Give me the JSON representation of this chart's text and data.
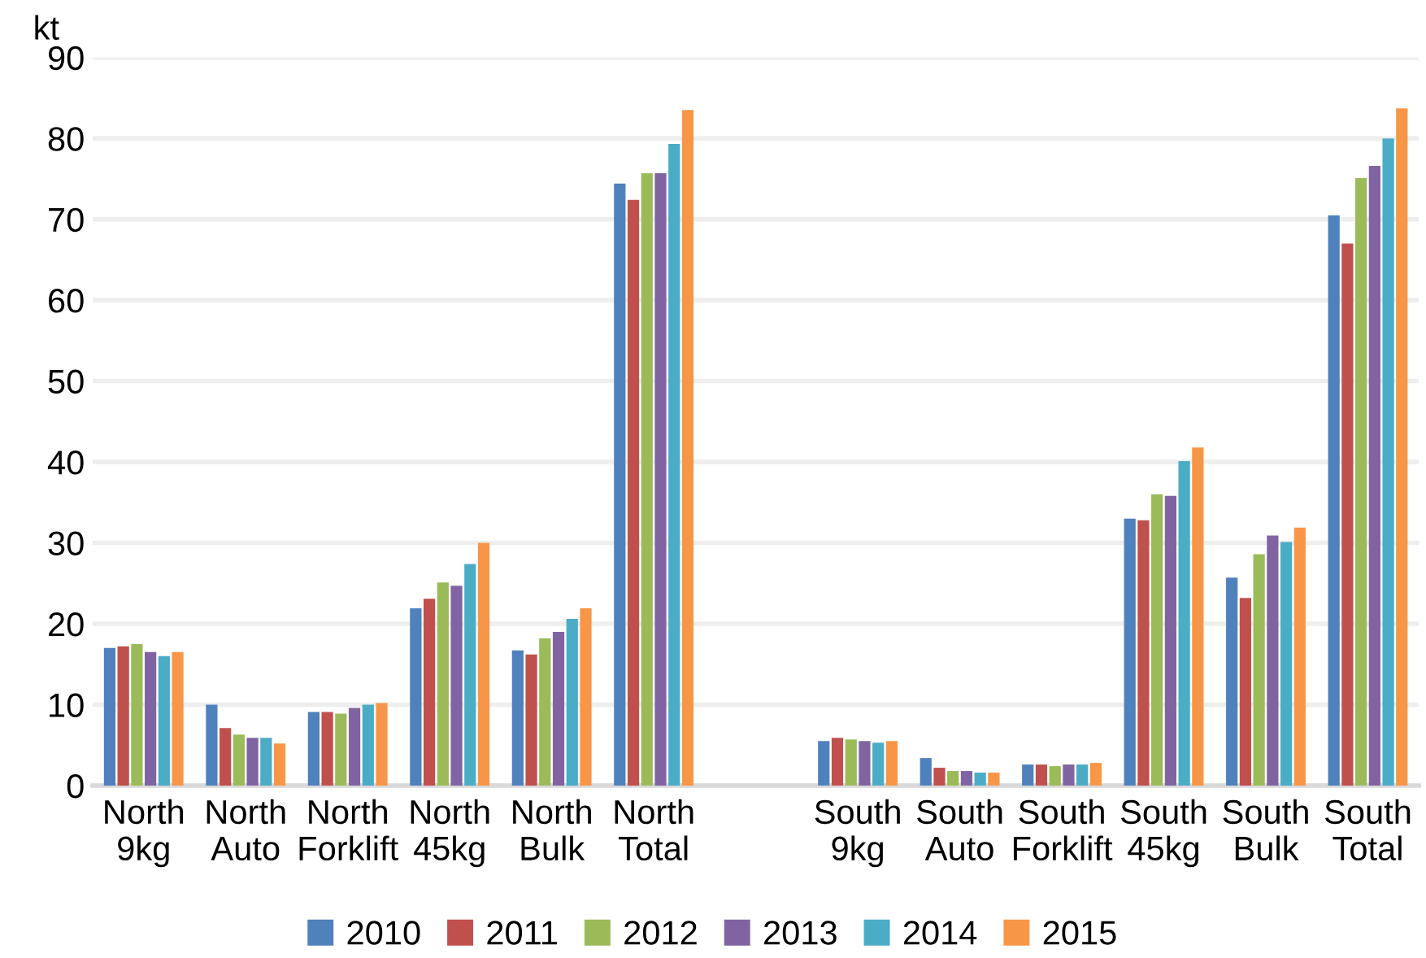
{
  "chart_data": {
    "type": "bar",
    "ylabel": "kt",
    "categories": [
      "North\n9kg",
      "North\nAuto",
      "North\nForklift",
      "North\n45kg",
      "North\nBulk",
      "North\nTotal",
      null,
      "South\n9kg",
      "South\nAuto",
      "South\nForklift",
      "South\n45kg",
      "South\nBulk",
      "South\nTotal"
    ],
    "series": [
      {
        "name": "2010",
        "color": "#4f81bd",
        "values": [
          17.0,
          10.0,
          9.1,
          21.9,
          16.7,
          74.4,
          null,
          5.5,
          3.4,
          2.6,
          33.0,
          25.7,
          70.5
        ]
      },
      {
        "name": "2011",
        "color": "#c0504d",
        "values": [
          17.2,
          7.1,
          9.1,
          23.1,
          16.2,
          72.4,
          null,
          5.9,
          2.2,
          2.6,
          32.8,
          23.2,
          67.0
        ]
      },
      {
        "name": "2012",
        "color": "#9bbb59",
        "values": [
          17.5,
          6.3,
          8.9,
          25.1,
          18.2,
          75.7,
          null,
          5.7,
          1.8,
          2.4,
          36.0,
          28.6,
          75.1
        ]
      },
      {
        "name": "2013",
        "color": "#8064a2",
        "values": [
          16.5,
          5.9,
          9.6,
          24.7,
          19.0,
          75.7,
          null,
          5.5,
          1.8,
          2.6,
          35.8,
          30.9,
          76.6
        ]
      },
      {
        "name": "2014",
        "color": "#4bacc6",
        "values": [
          16.0,
          5.9,
          10.0,
          27.4,
          20.6,
          79.3,
          null,
          5.3,
          1.6,
          2.6,
          40.1,
          30.1,
          80.0
        ]
      },
      {
        "name": "2015",
        "color": "#f79646",
        "values": [
          16.5,
          5.2,
          10.2,
          30.0,
          21.9,
          83.5,
          null,
          5.5,
          1.6,
          2.8,
          41.8,
          31.9,
          83.7
        ]
      }
    ],
    "ylim": [
      0,
      90
    ],
    "yticks": [
      0,
      10,
      20,
      30,
      40,
      50,
      60,
      70,
      80,
      90
    ],
    "grid": "y",
    "legend": "bottom"
  }
}
